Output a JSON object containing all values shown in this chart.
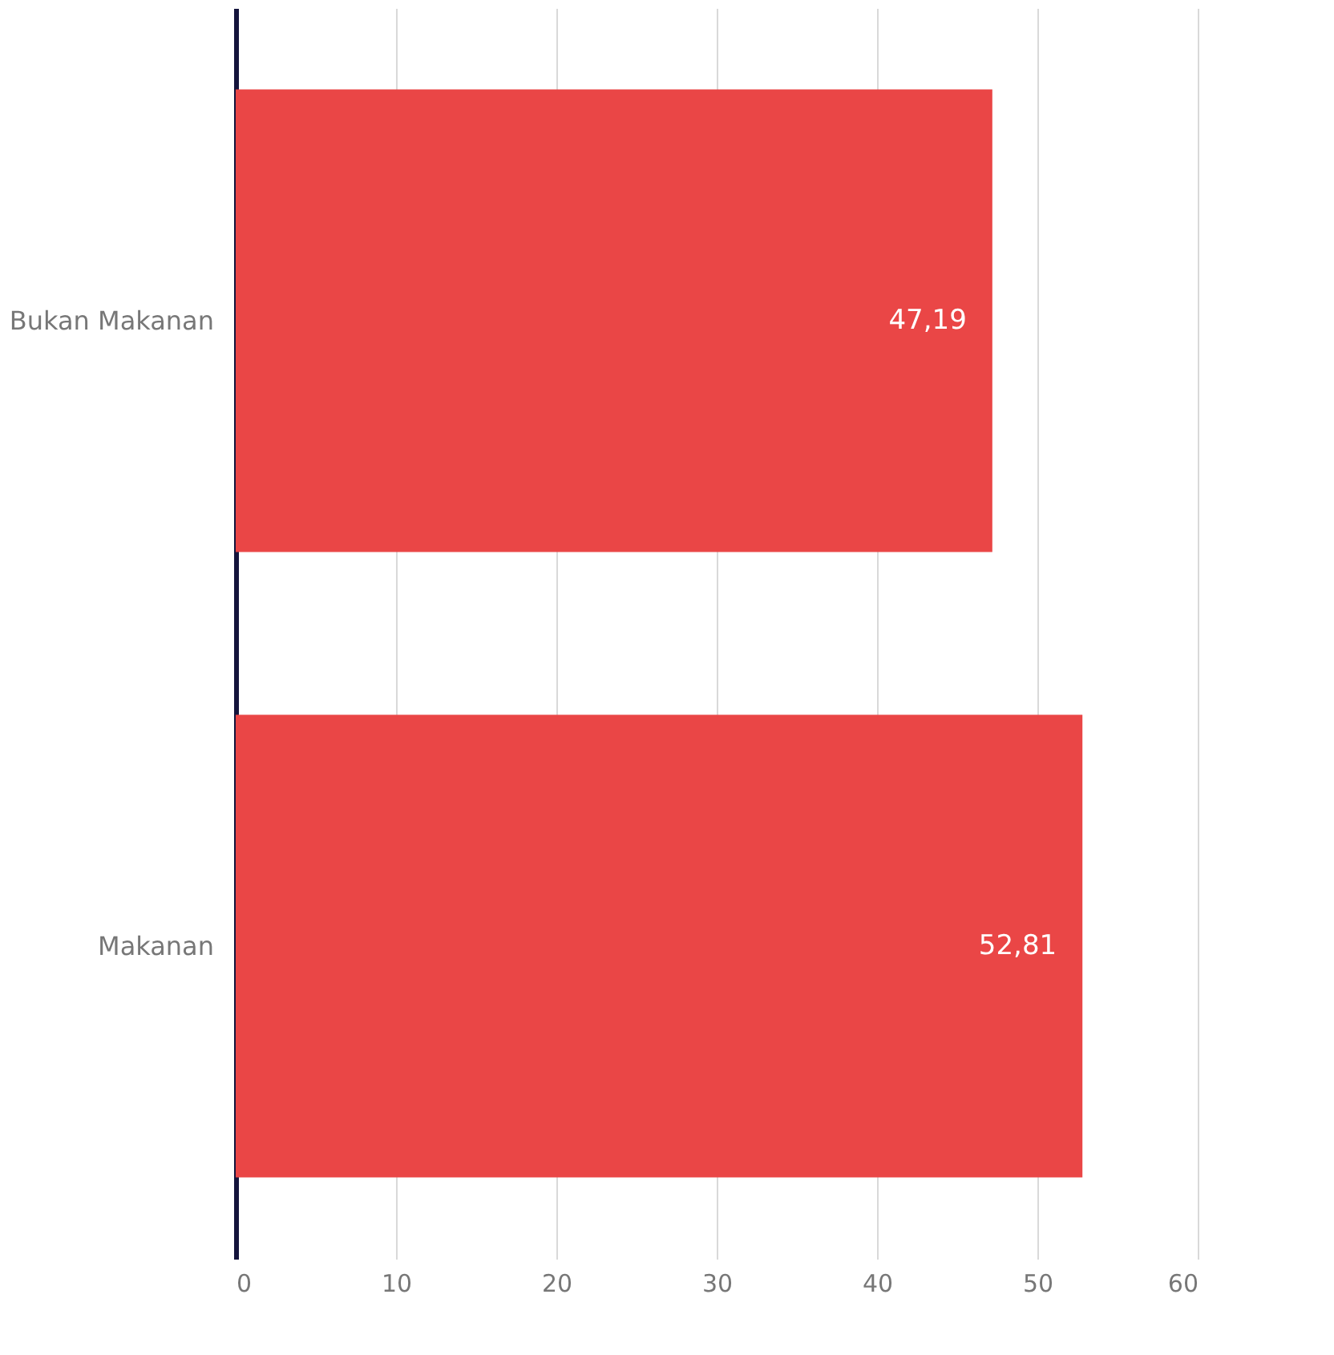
{
  "chart_data": {
    "type": "bar",
    "orientation": "horizontal",
    "categories": [
      "Bukan Makanan",
      "Makanan"
    ],
    "values": [
      47.19,
      52.81
    ],
    "value_labels": [
      "47,19",
      "52,81"
    ],
    "color": "#ea4646",
    "xlim": [
      0,
      60
    ],
    "xticks": [
      0,
      10,
      20,
      30,
      40,
      50,
      60
    ],
    "grid": "x"
  }
}
